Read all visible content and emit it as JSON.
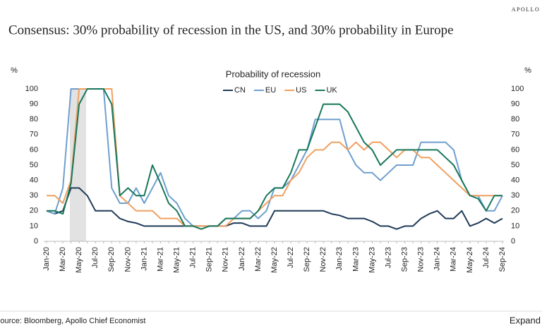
{
  "header": {
    "brand": "APOLLO",
    "title": "Consensus: 30% probability of recession in the US, and 30% probability in Europe"
  },
  "chart_data": {
    "type": "line",
    "title": "Probability of recession",
    "y_label": "%",
    "y2_label": "%",
    "categories": [
      "Jan-20",
      null,
      "Mar-20",
      null,
      "May-20",
      null,
      "Jul-20",
      null,
      "Sep-20",
      null,
      "Nov-20",
      null,
      "Jan-21",
      null,
      "Mar-21",
      null,
      "May-21",
      null,
      "Jul-21",
      null,
      "Sep-21",
      null,
      "Nov-21",
      null,
      "Jan-22",
      null,
      "Mar-22",
      null,
      "May-22",
      null,
      "Jul-22",
      null,
      "Sep-22",
      null,
      "Nov-22",
      null,
      "Jan-23",
      null,
      "Mar-23",
      null,
      "May-23",
      null,
      "Jul-23",
      null,
      "Sep-23",
      null,
      "Nov-23",
      null,
      "Jan-24",
      null,
      "Mar-24",
      null,
      "May-24",
      null,
      "Jul-24",
      null,
      "Sep-24"
    ],
    "series": [
      {
        "name": "CN",
        "color": "#1f3b57",
        "values": [
          20,
          18,
          20,
          35,
          35,
          30,
          20,
          20,
          20,
          15,
          13,
          12,
          10,
          10,
          10,
          10,
          10,
          10,
          10,
          10,
          10,
          10,
          10,
          12,
          12,
          10,
          10,
          10,
          20,
          20,
          20,
          20,
          20,
          20,
          20,
          18,
          17,
          15,
          15,
          15,
          13,
          10,
          10,
          8,
          10,
          10,
          15,
          18,
          20,
          15,
          15,
          20,
          10,
          12,
          15,
          12,
          15
        ]
      },
      {
        "name": "EU",
        "color": "#6f9fcf",
        "values": [
          20,
          18,
          35,
          100,
          100,
          100,
          100,
          100,
          35,
          25,
          25,
          35,
          25,
          35,
          45,
          30,
          25,
          15,
          10,
          10,
          10,
          10,
          15,
          15,
          20,
          20,
          15,
          20,
          35,
          35,
          40,
          50,
          60,
          80,
          80,
          80,
          80,
          60,
          50,
          45,
          45,
          40,
          45,
          50,
          50,
          50,
          65,
          65,
          65,
          65,
          60,
          40,
          30,
          30,
          20,
          20,
          30
        ]
      },
      {
        "name": "US",
        "color": "#f0a060",
        "values": [
          30,
          30,
          25,
          40,
          100,
          100,
          100,
          100,
          100,
          30,
          25,
          20,
          20,
          20,
          15,
          15,
          15,
          10,
          10,
          10,
          10,
          10,
          10,
          15,
          15,
          15,
          20,
          25,
          30,
          30,
          40,
          45,
          55,
          60,
          60,
          65,
          65,
          60,
          65,
          60,
          65,
          65,
          60,
          55,
          60,
          60,
          55,
          55,
          50,
          45,
          40,
          35,
          30,
          30,
          30,
          30,
          30
        ]
      },
      {
        "name": "UK",
        "color": "#17775a",
        "values": [
          20,
          20,
          18,
          38,
          90,
          100,
          100,
          100,
          90,
          30,
          35,
          30,
          30,
          50,
          38,
          25,
          20,
          10,
          10,
          8,
          10,
          10,
          15,
          15,
          15,
          15,
          20,
          30,
          35,
          35,
          45,
          60,
          60,
          75,
          90,
          90,
          90,
          85,
          75,
          65,
          60,
          50,
          55,
          60,
          60,
          60,
          60,
          60,
          60,
          55,
          50,
          40,
          30,
          28,
          20,
          30,
          30
        ]
      }
    ],
    "ylim": [
      0,
      100
    ],
    "yticks": [
      0,
      10,
      20,
      30,
      40,
      50,
      60,
      70,
      80,
      90,
      100
    ],
    "y2lim": [
      0,
      100
    ],
    "y2ticks": [
      0,
      10,
      20,
      30,
      40,
      50,
      60,
      70,
      80,
      90,
      100
    ],
    "legend": "top"
  },
  "footer": {
    "source": "Source: Bloomberg, Apollo Chief Economist",
    "action": "Expand"
  }
}
